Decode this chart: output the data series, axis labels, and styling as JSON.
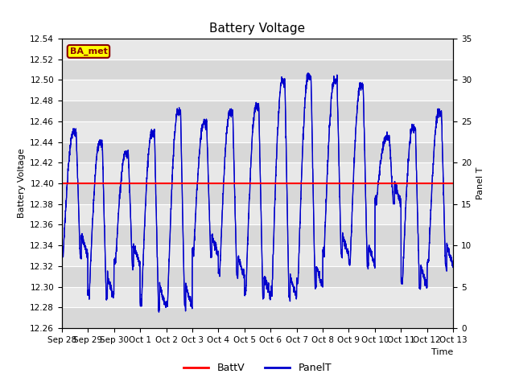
{
  "title": "Battery Voltage",
  "xlabel": "Time",
  "ylabel_left": "Battery Voltage",
  "ylabel_right": "Panel T",
  "ylim_left": [
    12.26,
    12.54
  ],
  "ylim_right": [
    0,
    35
  ],
  "yticks_left": [
    12.26,
    12.28,
    12.3,
    12.32,
    12.34,
    12.36,
    12.38,
    12.4,
    12.42,
    12.44,
    12.46,
    12.48,
    12.5,
    12.52,
    12.54
  ],
  "yticks_right": [
    0,
    5,
    10,
    15,
    20,
    25,
    30,
    35
  ],
  "x_tick_labels": [
    "Sep 28",
    "Sep 29",
    "Sep 30",
    "Oct 1",
    "Oct 2",
    "Oct 3",
    "Oct 4",
    "Oct 5",
    "Oct 6",
    "Oct 7",
    "Oct 8",
    "Oct 9",
    "Oct 10",
    "Oct 11",
    "Oct 12",
    "Oct 13"
  ],
  "battv_value": 12.4,
  "battv_color": "#ff0000",
  "panelt_color": "#0000cc",
  "background_color": "#ffffff",
  "plot_bg_color": "#e8e8e8",
  "grid_color": "#ffffff",
  "label_box_color": "#ffff00",
  "label_box_border": "#8b0000",
  "label_text": "BA_met",
  "legend_battv": "BattV",
  "legend_panelt": "PanelT",
  "title_fontsize": 11,
  "axis_fontsize": 8,
  "tick_fontsize": 7.5
}
